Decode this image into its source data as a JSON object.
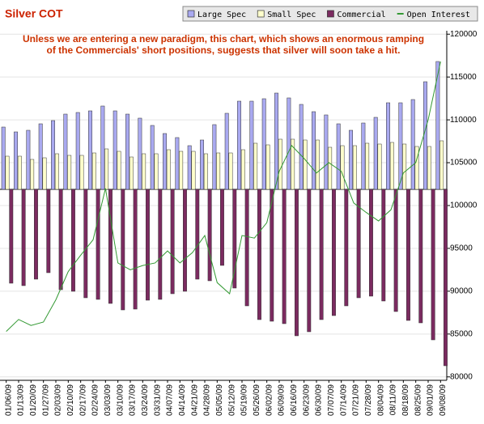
{
  "chart_data": {
    "type": "bar",
    "title": "Silver COT",
    "annotation": [
      "Unless we are entering a new paradigm, this chart, which shows an enormous ramping",
      "of the Commercials' short positions, suggests that silver will soon take a hit."
    ],
    "categories": [
      "01/06/09",
      "01/13/09",
      "01/20/09",
      "01/27/09",
      "02/03/09",
      "02/10/09",
      "02/17/09",
      "02/24/09",
      "03/03/09",
      "03/10/09",
      "03/17/09",
      "03/24/09",
      "03/31/09",
      "04/07/09",
      "04/14/09",
      "04/21/09",
      "04/28/09",
      "05/05/09",
      "05/12/09",
      "05/19/09",
      "05/26/09",
      "06/02/09",
      "06/09/09",
      "06/16/09",
      "06/23/09",
      "06/30/09",
      "07/07/09",
      "07/14/09",
      "07/21/09",
      "07/28/09",
      "08/04/09",
      "08/11/09",
      "08/18/09",
      "08/25/09",
      "09/01/09",
      "09/08/09"
    ],
    "series": [
      {
        "name": "Large Spec",
        "color": "#a9a9f0",
        "values": [
          7700,
          7100,
          7300,
          8100,
          8500,
          9300,
          9500,
          9700,
          10300,
          9700,
          9300,
          8800,
          7900,
          6900,
          6400,
          5400,
          6100,
          8000,
          9400,
          10900,
          10900,
          11200,
          11900,
          11300,
          10500,
          9600,
          9200,
          8100,
          7300,
          8200,
          8900,
          10700,
          10700,
          11100,
          13300,
          15800
        ]
      },
      {
        "name": "Small Spec",
        "color": "#ffffcc",
        "values": [
          4100,
          4100,
          3700,
          3900,
          4400,
          4200,
          4200,
          4500,
          5000,
          4700,
          4000,
          4400,
          4400,
          4900,
          4700,
          4700,
          4400,
          4500,
          4500,
          4900,
          5700,
          5500,
          6200,
          6200,
          6100,
          6100,
          5200,
          5400,
          5400,
          5700,
          5600,
          5800,
          5600,
          5300,
          5300,
          6000
        ]
      },
      {
        "name": "Commercial",
        "color": "#7b2b60",
        "values": [
          -11600,
          -11900,
          -11100,
          -10300,
          -12400,
          -12600,
          -13400,
          -13600,
          -14100,
          -14900,
          -14800,
          -13700,
          -13600,
          -12900,
          -12600,
          -11100,
          -11300,
          -9400,
          -12200,
          -14400,
          -16100,
          -16300,
          -16600,
          -18100,
          -17600,
          -16100,
          -15600,
          -14400,
          -13400,
          -13200,
          -13800,
          -15100,
          -16200,
          -16500,
          -18600,
          -21800
        ]
      },
      {
        "name": "Open Interest",
        "color": "#339933",
        "type": "line",
        "axis": "y2",
        "values": [
          85300,
          86700,
          86000,
          86400,
          89000,
          92300,
          94200,
          96000,
          102000,
          93300,
          92500,
          93000,
          93300,
          94700,
          93300,
          94500,
          96500,
          91000,
          89700,
          96500,
          96200,
          98000,
          104000,
          107000,
          105500,
          103800,
          105000,
          104000,
          100300,
          99200,
          98200,
          99500,
          103800,
          105000,
          110000,
          116800
        ]
      }
    ],
    "ylim": [
      -23600,
      19600
    ],
    "y2lim": [
      79600,
      120400
    ],
    "y2ticks": [
      80000,
      85000,
      90000,
      95000,
      100000,
      105000,
      110000,
      115000,
      120000
    ],
    "grid": true,
    "legend": "top-right"
  }
}
